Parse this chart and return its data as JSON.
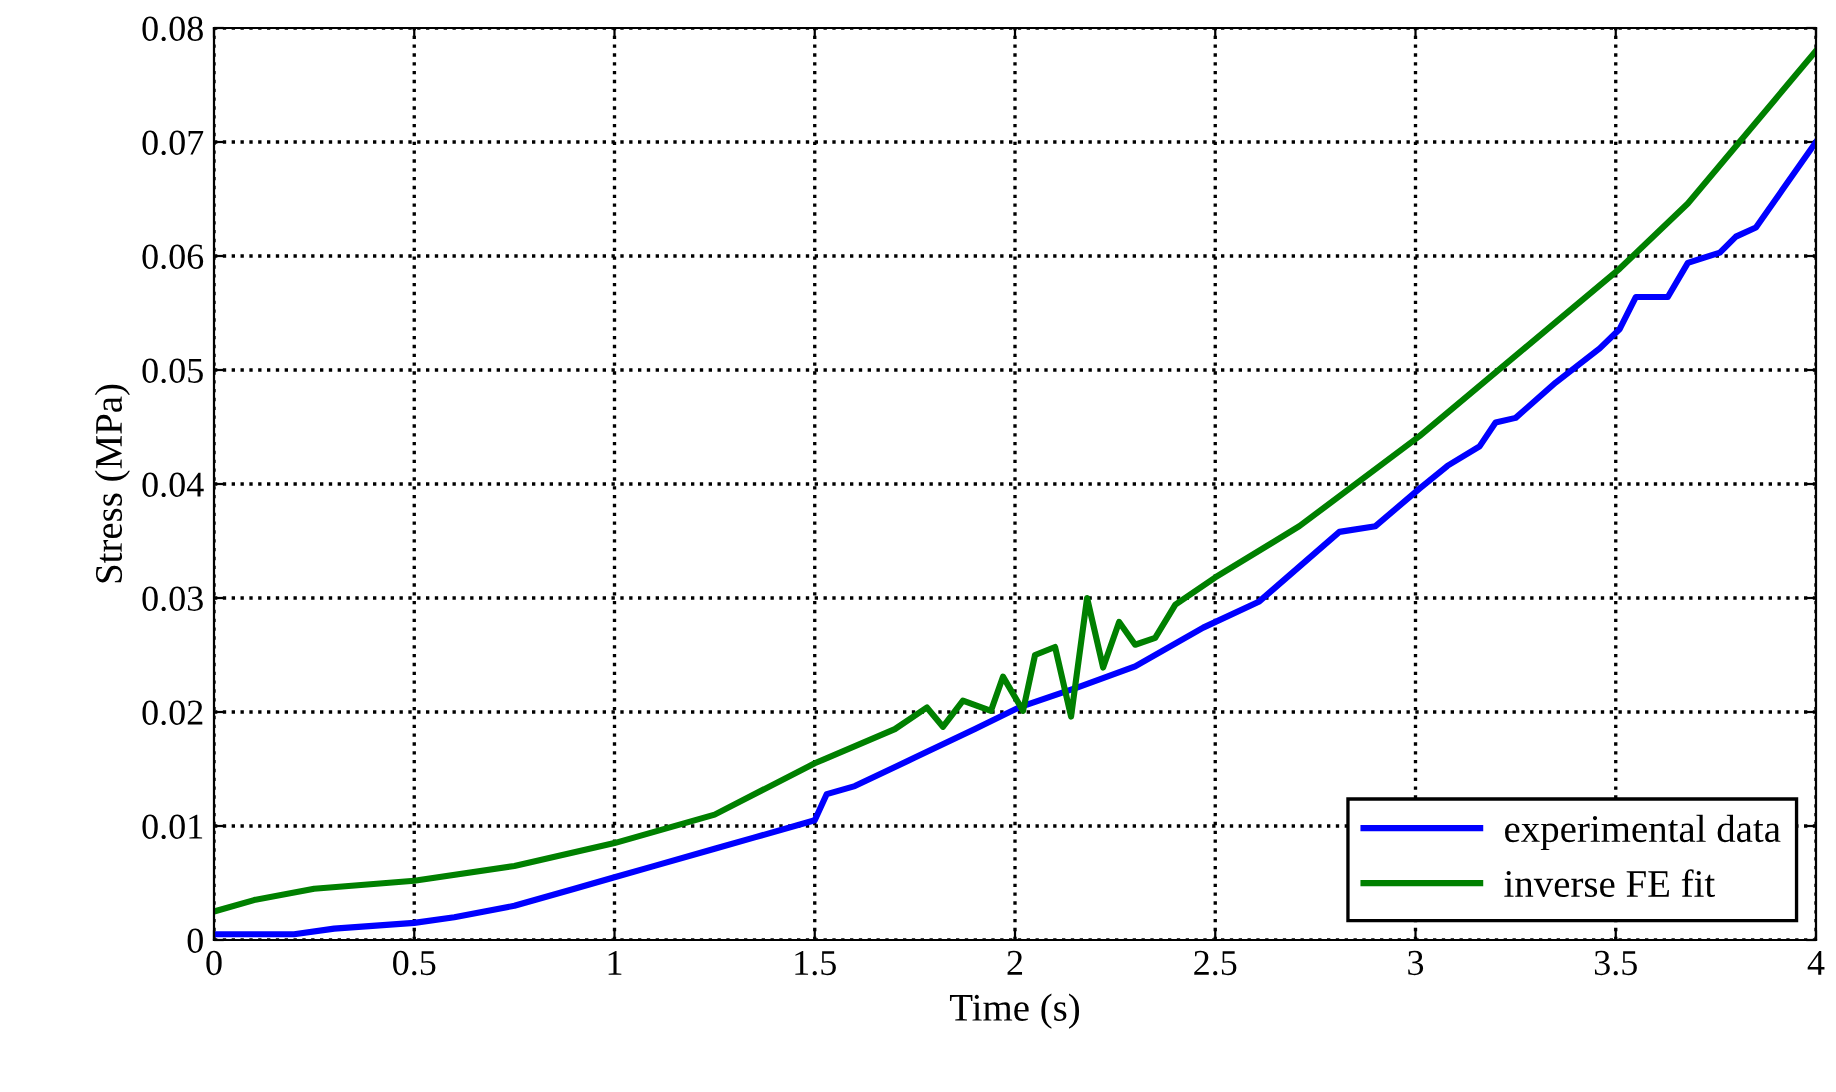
{
  "chart_data": {
    "type": "line",
    "xlabel": "Time (s)",
    "ylabel": "Stress (MPa)",
    "xlim": [
      0,
      4
    ],
    "xticks": [
      0,
      0.5,
      1,
      1.5,
      2,
      2.5,
      3,
      3.5,
      4
    ],
    "ylim": [
      0,
      0.08
    ],
    "yticks": [
      0,
      0.01,
      0.02,
      0.03,
      0.04,
      0.05,
      0.06,
      0.07,
      0.08
    ],
    "grid": true,
    "legend": "bottom right",
    "line_style": "solid",
    "marker": "none",
    "series": [
      {
        "name": "experimental data",
        "color": "#0000ff",
        "x": [
          0,
          0.2,
          0.3,
          0.5,
          0.6,
          0.75,
          0.9,
          1.0,
          1.1,
          1.25,
          1.35,
          1.5,
          1.53,
          1.6,
          1.75,
          1.9,
          2.01,
          2.16,
          2.3,
          2.47,
          2.61,
          2.81,
          2.9,
          3.01,
          3.08,
          3.16,
          3.2,
          3.25,
          3.35,
          3.46,
          3.51,
          3.55,
          3.63,
          3.68,
          3.76,
          3.8,
          3.85,
          3.92,
          4.0
        ],
        "values": [
          0.0005,
          0.0005,
          0.001,
          0.0015,
          0.002,
          0.003,
          0.0045,
          0.0055,
          0.0065,
          0.008,
          0.009,
          0.0105,
          0.0128,
          0.0135,
          0.016,
          0.0185,
          0.0204,
          0.0222,
          0.024,
          0.0274,
          0.0297,
          0.0358,
          0.0363,
          0.0396,
          0.0416,
          0.0433,
          0.0454,
          0.0458,
          0.0489,
          0.0519,
          0.0536,
          0.0564,
          0.0564,
          0.0594,
          0.0603,
          0.0617,
          0.0625,
          0.066,
          0.07
        ]
      },
      {
        "name": "inverse FE fit",
        "color": "#008000",
        "x": [
          0,
          0.1,
          0.25,
          0.5,
          0.75,
          1.0,
          1.25,
          1.5,
          1.7,
          1.78,
          1.82,
          1.87,
          1.94,
          1.97,
          2.02,
          2.05,
          2.1,
          2.14,
          2.18,
          2.22,
          2.26,
          2.3,
          2.35,
          2.4,
          2.5,
          2.71,
          3.01,
          3.51,
          3.68,
          4.0
        ],
        "values": [
          0.0025,
          0.0035,
          0.0045,
          0.0052,
          0.0065,
          0.0085,
          0.011,
          0.0155,
          0.0185,
          0.0204,
          0.0187,
          0.021,
          0.0201,
          0.0231,
          0.0201,
          0.025,
          0.0257,
          0.0196,
          0.03,
          0.0239,
          0.0279,
          0.0259,
          0.0265,
          0.0294,
          0.0318,
          0.0363,
          0.0442,
          0.0589,
          0.0646,
          0.078
        ]
      }
    ]
  }
}
